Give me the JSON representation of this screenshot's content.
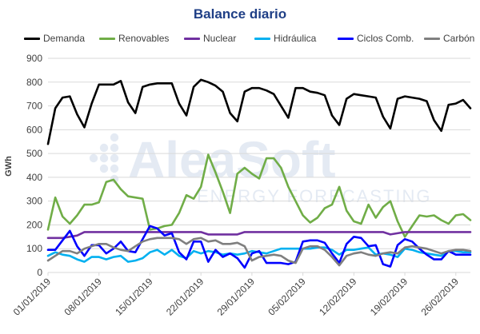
{
  "watermark": {
    "brand": "AleaSoft",
    "tagline": "ENERGY FORECASTING"
  },
  "colors": {
    "demanda": "#000000",
    "renovables": "#70ad47",
    "nuclear": "#7030a0",
    "hidraulica": "#00b0f0",
    "ciclos": "#0000ff",
    "carbon": "#7f7f7f",
    "grid": "#d9d9d9",
    "title": "#1f3f86",
    "watermark": "#dbe4f0"
  },
  "chart_data": {
    "type": "line",
    "title": "Balance diario",
    "xlabel": "",
    "ylabel": "GWh",
    "ylim": [
      0,
      900
    ],
    "yticks": [
      0,
      100,
      200,
      300,
      400,
      500,
      600,
      700,
      800,
      900
    ],
    "grid": true,
    "legend_position": "top",
    "x_start": "2019-01-01",
    "x": [
      "01/01/2019",
      "02/01/2019",
      "03/01/2019",
      "04/01/2019",
      "05/01/2019",
      "06/01/2019",
      "07/01/2019",
      "08/01/2019",
      "09/01/2019",
      "10/01/2019",
      "11/01/2019",
      "12/01/2019",
      "13/01/2019",
      "14/01/2019",
      "15/01/2019",
      "16/01/2019",
      "17/01/2019",
      "18/01/2019",
      "19/01/2019",
      "20/01/2019",
      "21/01/2019",
      "22/01/2019",
      "23/01/2019",
      "24/01/2019",
      "25/01/2019",
      "26/01/2019",
      "27/01/2019",
      "28/01/2019",
      "29/01/2019",
      "30/01/2019",
      "31/01/2019",
      "01/02/2019",
      "02/02/2019",
      "03/02/2019",
      "04/02/2019",
      "05/02/2019",
      "06/02/2019",
      "07/02/2019",
      "08/02/2019",
      "09/02/2019",
      "10/02/2019",
      "11/02/2019",
      "12/02/2019",
      "13/02/2019",
      "14/02/2019",
      "15/02/2019",
      "16/02/2019",
      "17/02/2019",
      "18/02/2019",
      "19/02/2019",
      "20/02/2019",
      "21/02/2019",
      "22/02/2019",
      "23/02/2019",
      "24/02/2019",
      "25/02/2019",
      "26/02/2019",
      "27/02/2019",
      "28/02/2019"
    ],
    "x_tick_labels": [
      {
        "index": 0,
        "label": "01/01/2019"
      },
      {
        "index": 7,
        "label": "08/01/2019"
      },
      {
        "index": 14,
        "label": "15/01/2019"
      },
      {
        "index": 21,
        "label": "22/01/2019"
      },
      {
        "index": 28,
        "label": "29/01/2019"
      },
      {
        "index": 35,
        "label": "05/02/2019"
      },
      {
        "index": 42,
        "label": "12/02/2019"
      },
      {
        "index": 49,
        "label": "19/02/2019"
      },
      {
        "index": 56,
        "label": "26/02/2019"
      }
    ],
    "series": [
      {
        "key": "demanda",
        "name": "Demanda",
        "values": [
          540,
          690,
          735,
          740,
          665,
          610,
          710,
          790,
          790,
          790,
          805,
          715,
          670,
          780,
          790,
          795,
          795,
          795,
          710,
          660,
          780,
          810,
          800,
          785,
          760,
          670,
          635,
          760,
          775,
          775,
          765,
          750,
          700,
          650,
          775,
          775,
          760,
          755,
          745,
          660,
          620,
          730,
          750,
          745,
          740,
          735,
          655,
          605,
          730,
          740,
          735,
          730,
          720,
          640,
          595,
          705,
          710,
          725,
          690
        ]
      },
      {
        "key": "renovables",
        "name": "Renovables",
        "values": [
          180,
          315,
          235,
          205,
          240,
          285,
          285,
          295,
          380,
          390,
          350,
          320,
          315,
          310,
          180,
          185,
          195,
          200,
          250,
          325,
          310,
          360,
          495,
          420,
          340,
          250,
          415,
          440,
          415,
          395,
          480,
          480,
          440,
          360,
          300,
          240,
          210,
          230,
          270,
          285,
          360,
          260,
          215,
          205,
          285,
          230,
          275,
          300,
          215,
          150,
          195,
          240,
          235,
          240,
          220,
          205,
          240,
          245,
          220
        ]
      },
      {
        "key": "nuclear",
        "name": "Nuclear",
        "values": [
          145,
          145,
          145,
          150,
          155,
          170,
          170,
          170,
          170,
          170,
          170,
          170,
          170,
          170,
          170,
          170,
          170,
          170,
          170,
          170,
          170,
          170,
          160,
          160,
          160,
          160,
          160,
          170,
          170,
          170,
          170,
          170,
          170,
          170,
          170,
          170,
          170,
          170,
          170,
          170,
          170,
          170,
          170,
          170,
          170,
          170,
          170,
          160,
          165,
          170,
          170,
          170,
          170,
          170,
          170,
          170,
          170,
          170,
          170
        ]
      },
      {
        "key": "hidraulica",
        "name": "Hidráulica",
        "values": [
          70,
          85,
          75,
          70,
          55,
          45,
          65,
          65,
          55,
          65,
          70,
          45,
          50,
          60,
          85,
          95,
          75,
          95,
          70,
          60,
          90,
          80,
          90,
          85,
          75,
          80,
          75,
          80,
          90,
          85,
          80,
          90,
          100,
          100,
          100,
          100,
          100,
          105,
          105,
          95,
          75,
          95,
          95,
          100,
          105,
          75,
          80,
          75,
          65,
          100,
          95,
          85,
          80,
          75,
          70,
          90,
          90,
          85,
          85
        ]
      },
      {
        "key": "ciclos",
        "name": "Ciclos Comb.",
        "values": [
          95,
          95,
          135,
          175,
          110,
          70,
          115,
          115,
          80,
          100,
          130,
          90,
          85,
          140,
          195,
          185,
          155,
          165,
          85,
          55,
          130,
          130,
          45,
          95,
          65,
          80,
          60,
          20,
          80,
          90,
          40,
          40,
          40,
          35,
          45,
          130,
          135,
          135,
          125,
          80,
          40,
          120,
          150,
          145,
          110,
          115,
          35,
          25,
          115,
          140,
          130,
          100,
          75,
          55,
          55,
          90,
          75,
          75,
          75
        ]
      },
      {
        "key": "carbon",
        "name": "Carbón",
        "values": [
          50,
          70,
          90,
          90,
          80,
          100,
          110,
          120,
          120,
          105,
          95,
          90,
          110,
          130,
          140,
          145,
          145,
          145,
          140,
          120,
          140,
          145,
          130,
          135,
          120,
          120,
          125,
          110,
          50,
          65,
          70,
          75,
          70,
          50,
          40,
          100,
          110,
          110,
          95,
          65,
          30,
          70,
          80,
          85,
          75,
          70,
          80,
          85,
          80,
          105,
          110,
          105,
          100,
          90,
          80,
          90,
          95,
          95,
          90
        ]
      }
    ]
  }
}
